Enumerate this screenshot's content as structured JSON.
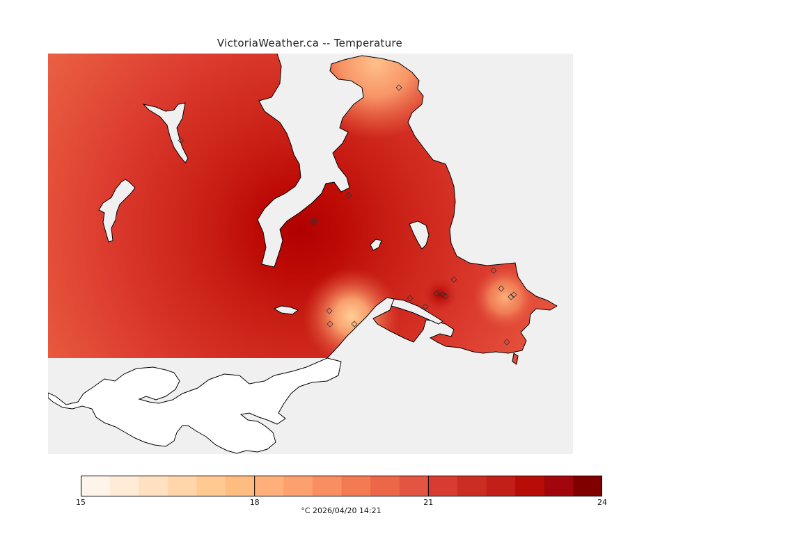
{
  "title": "VictoriaWeather.ca -- Temperature",
  "colorbar": {
    "min": 15,
    "max": 24,
    "step": 0.5,
    "tick_values": [
      15,
      18,
      21,
      24
    ],
    "tick_labels": [
      "15",
      "18",
      "21",
      "24"
    ],
    "colors": [
      "#fff4e9",
      "#ffebd6",
      "#ffe1c1",
      "#ffd5a9",
      "#ffc992",
      "#ffbc80",
      "#ffb07a",
      "#fca06d",
      "#f98e60",
      "#f47a52",
      "#ec6747",
      "#e35540",
      "#d83c30",
      "#cc2d22",
      "#c21f18",
      "#b80c07",
      "#a0060b",
      "#800000"
    ]
  },
  "caption": "°C  2026/04/20 14:21",
  "colors": {
    "background_sea": "#f0f0f0",
    "no_data_land": "#ffffff",
    "coastline": "#000000"
  },
  "stations": {
    "marker": "diamond"
  }
}
